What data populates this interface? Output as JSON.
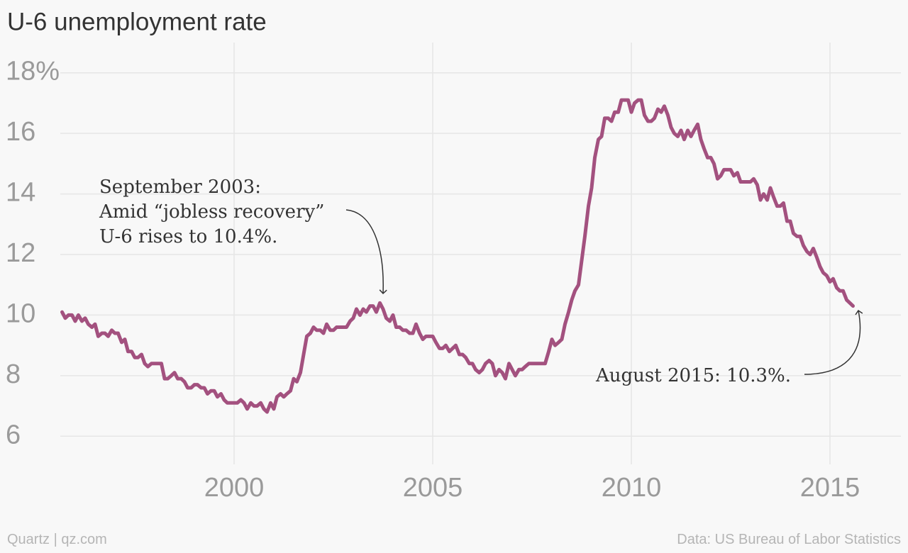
{
  "chart_data": {
    "type": "line",
    "title": "U-6 unemployment rate",
    "source": "Data: US Bureau of Labor Statistics",
    "credit": "Quartz | qz.com",
    "annotations": [
      {
        "lines": [
          "September 2003:",
          "Amid “jobless recovery”",
          "U-6 rises to 10.4%."
        ]
      },
      {
        "lines": [
          "August 2015: 10.3%."
        ]
      }
    ],
    "xlim": [
      1995,
      2016.8
    ],
    "ylim": [
      5,
      19
    ],
    "xticks": [
      2000,
      2005,
      2010,
      2015
    ],
    "yticks": [
      6,
      8,
      10,
      12,
      14,
      16,
      {
        "value": 18,
        "label": "18%"
      }
    ],
    "grid": true,
    "x": [
      1995.67,
      1995.75,
      1995.83,
      1995.92,
      1996,
      1996.08,
      1996.17,
      1996.25,
      1996.33,
      1996.42,
      1996.5,
      1996.58,
      1996.67,
      1996.75,
      1996.83,
      1996.92,
      1997,
      1997.08,
      1997.17,
      1997.25,
      1997.33,
      1997.42,
      1997.5,
      1997.58,
      1997.67,
      1997.75,
      1997.83,
      1997.92,
      1998,
      1998.08,
      1998.17,
      1998.25,
      1998.33,
      1998.42,
      1998.5,
      1998.58,
      1998.67,
      1998.75,
      1998.83,
      1998.92,
      1999,
      1999.08,
      1999.17,
      1999.25,
      1999.33,
      1999.42,
      1999.5,
      1999.58,
      1999.67,
      1999.75,
      1999.83,
      1999.92,
      2000,
      2000.08,
      2000.17,
      2000.25,
      2000.33,
      2000.42,
      2000.5,
      2000.58,
      2000.67,
      2000.75,
      2000.83,
      2000.92,
      2001,
      2001.08,
      2001.17,
      2001.25,
      2001.33,
      2001.42,
      2001.5,
      2001.58,
      2001.67,
      2001.75,
      2001.83,
      2001.92,
      2002,
      2002.08,
      2002.17,
      2002.25,
      2002.33,
      2002.42,
      2002.5,
      2002.58,
      2002.67,
      2002.75,
      2002.83,
      2002.92,
      2003,
      2003.08,
      2003.17,
      2003.25,
      2003.33,
      2003.42,
      2003.5,
      2003.58,
      2003.67,
      2003.75,
      2003.83,
      2003.92,
      2004,
      2004.08,
      2004.17,
      2004.25,
      2004.33,
      2004.42,
      2004.5,
      2004.58,
      2004.67,
      2004.75,
      2004.83,
      2004.92,
      2005,
      2005.08,
      2005.17,
      2005.25,
      2005.33,
      2005.42,
      2005.5,
      2005.58,
      2005.67,
      2005.75,
      2005.83,
      2005.92,
      2006,
      2006.08,
      2006.17,
      2006.25,
      2006.33,
      2006.42,
      2006.5,
      2006.58,
      2006.67,
      2006.75,
      2006.83,
      2006.92,
      2007,
      2007.08,
      2007.17,
      2007.25,
      2007.33,
      2007.42,
      2007.5,
      2007.58,
      2007.67,
      2007.75,
      2007.83,
      2007.92,
      2008,
      2008.08,
      2008.17,
      2008.25,
      2008.33,
      2008.42,
      2008.5,
      2008.58,
      2008.67,
      2008.75,
      2008.83,
      2008.92,
      2009,
      2009.08,
      2009.17,
      2009.25,
      2009.33,
      2009.42,
      2009.5,
      2009.58,
      2009.67,
      2009.75,
      2009.83,
      2009.92,
      2010,
      2010.08,
      2010.17,
      2010.25,
      2010.33,
      2010.42,
      2010.5,
      2010.58,
      2010.67,
      2010.75,
      2010.83,
      2010.92,
      2011,
      2011.08,
      2011.17,
      2011.25,
      2011.33,
      2011.42,
      2011.5,
      2011.58,
      2011.67,
      2011.75,
      2011.83,
      2011.92,
      2012,
      2012.08,
      2012.17,
      2012.25,
      2012.33,
      2012.42,
      2012.5,
      2012.58,
      2012.67,
      2012.75,
      2012.83,
      2012.92,
      2013,
      2013.08,
      2013.17,
      2013.25,
      2013.33,
      2013.42,
      2013.5,
      2013.58,
      2013.67,
      2013.75,
      2013.83,
      2013.92,
      2014,
      2014.08,
      2014.17,
      2014.25,
      2014.33,
      2014.42,
      2014.5,
      2014.58,
      2014.67,
      2014.75,
      2014.83,
      2014.92,
      2015,
      2015.08,
      2015.17,
      2015.25,
      2015.33,
      2015.42,
      2015.5,
      2015.58
    ],
    "series": [
      {
        "name": "U-6",
        "color": "#a3517f",
        "values": [
          10.1,
          9.9,
          10.0,
          10.0,
          9.8,
          10.0,
          9.8,
          9.9,
          9.7,
          9.6,
          9.7,
          9.3,
          9.4,
          9.4,
          9.3,
          9.5,
          9.4,
          9.4,
          9.1,
          9.2,
          8.8,
          8.8,
          8.6,
          8.6,
          8.7,
          8.4,
          8.3,
          8.4,
          8.4,
          8.4,
          8.4,
          7.9,
          7.9,
          8.0,
          8.1,
          7.9,
          7.9,
          7.8,
          7.6,
          7.6,
          7.7,
          7.7,
          7.6,
          7.6,
          7.4,
          7.5,
          7.5,
          7.3,
          7.4,
          7.2,
          7.1,
          7.1,
          7.1,
          7.1,
          7.2,
          7.1,
          6.9,
          7.1,
          7.0,
          7.0,
          7.1,
          6.9,
          6.8,
          7.1,
          6.9,
          7.3,
          7.4,
          7.3,
          7.4,
          7.5,
          7.9,
          7.8,
          8.1,
          8.7,
          9.3,
          9.4,
          9.6,
          9.5,
          9.5,
          9.4,
          9.7,
          9.5,
          9.5,
          9.6,
          9.6,
          9.6,
          9.6,
          9.8,
          9.9,
          10.2,
          10.0,
          10.2,
          10.1,
          10.3,
          10.3,
          10.1,
          10.4,
          10.2,
          9.9,
          9.8,
          10.0,
          9.6,
          9.6,
          9.5,
          9.5,
          9.4,
          9.4,
          9.7,
          9.4,
          9.2,
          9.3,
          9.3,
          9.3,
          9.1,
          8.9,
          8.9,
          9.0,
          8.8,
          8.9,
          9.0,
          8.7,
          8.7,
          8.6,
          8.4,
          8.4,
          8.2,
          8.1,
          8.2,
          8.4,
          8.5,
          8.4,
          8.0,
          8.2,
          8.1,
          7.9,
          8.4,
          8.2,
          8.0,
          8.2,
          8.2,
          8.3,
          8.4,
          8.4,
          8.4,
          8.4,
          8.4,
          8.4,
          8.8,
          9.2,
          9.0,
          9.1,
          9.2,
          9.7,
          10.1,
          10.5,
          10.8,
          11.0,
          11.8,
          12.6,
          13.6,
          14.2,
          15.2,
          15.8,
          15.9,
          16.5,
          16.5,
          16.4,
          16.7,
          16.7,
          17.1,
          17.1,
          17.1,
          16.7,
          17.0,
          17.1,
          17.1,
          16.6,
          16.4,
          16.4,
          16.5,
          16.8,
          16.7,
          16.9,
          16.6,
          16.2,
          16.0,
          15.9,
          16.1,
          15.8,
          16.1,
          15.9,
          16.1,
          16.3,
          15.8,
          15.5,
          15.2,
          15.2,
          15.0,
          14.5,
          14.6,
          14.8,
          14.8,
          14.8,
          14.6,
          14.7,
          14.4,
          14.4,
          14.4,
          14.4,
          14.5,
          14.3,
          13.8,
          14.0,
          13.8,
          14.2,
          13.9,
          13.6,
          13.6,
          13.7,
          13.1,
          13.1,
          12.7,
          12.6,
          12.6,
          12.3,
          12.1,
          12.0,
          12.2,
          11.9,
          11.6,
          11.4,
          11.3,
          11.1,
          11.2,
          10.9,
          10.8,
          10.8,
          10.5,
          10.4,
          10.3
        ]
      }
    ]
  }
}
